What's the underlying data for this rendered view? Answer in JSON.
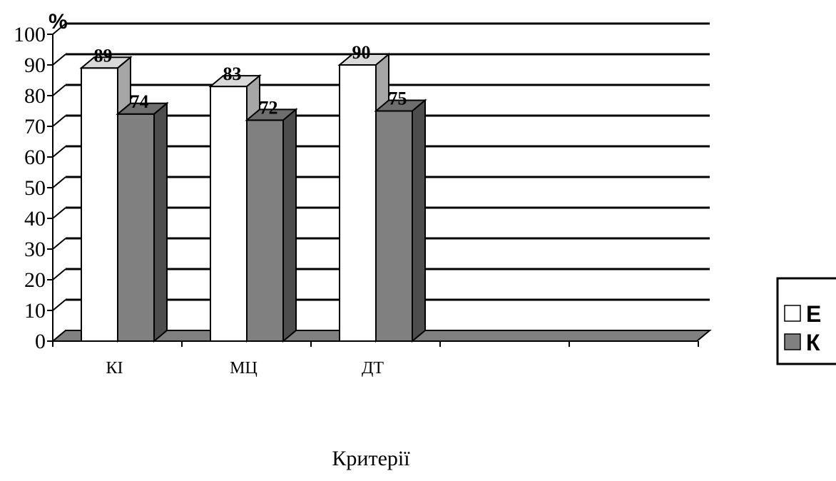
{
  "chart_data": {
    "type": "bar",
    "categories": [
      "КІ",
      "МЦ",
      "ДТ",
      "",
      ""
    ],
    "series": [
      {
        "name": "Е",
        "values": [
          89,
          83,
          90,
          null,
          null
        ]
      },
      {
        "name": "К",
        "values": [
          74,
          72,
          75,
          null,
          null
        ]
      }
    ],
    "title": "",
    "xlabel": "Критерії",
    "ylabel": "%",
    "ylim": [
      0,
      100
    ],
    "yticks": [
      0,
      10,
      20,
      30,
      40,
      50,
      60,
      70,
      80,
      90,
      100
    ],
    "grid": true,
    "legend_position": "right",
    "colors": {
      "series_e_front": "#ffffff",
      "series_e_top": "#d9d9d9",
      "series_e_side": "#a6a6a6",
      "series_k_front": "#808080",
      "series_k_top": "#6e6e6e",
      "series_k_side": "#4d4d4d",
      "floor": "#808080",
      "outline": "#000000"
    }
  }
}
